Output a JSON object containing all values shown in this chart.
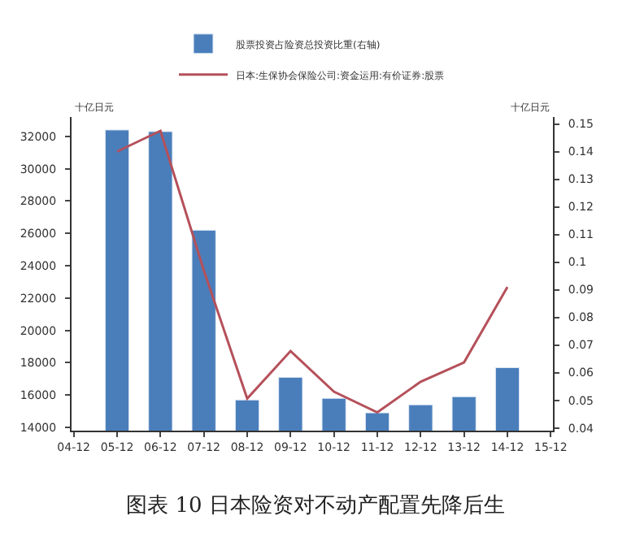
{
  "chart_data": {
    "type": "bar",
    "title": "图表 10 日本险资对不动产配置先降后生",
    "categories": [
      "04-12",
      "05-12",
      "06-12",
      "07-12",
      "08-12",
      "09-12",
      "10-12",
      "11-12",
      "12-12",
      "13-12",
      "14-12",
      "15-12"
    ],
    "series": [
      {
        "name": "股票投资占险资总投资比重(右轴)",
        "color": "#4a7ebb",
        "values": [
          null,
          32400,
          32300,
          26200,
          15700,
          17100,
          15800,
          14900,
          15400,
          15900,
          17700,
          null
        ]
      },
      {
        "name": "日本:生保协会保险公司:资金运用:有价证券:股票",
        "type": "line",
        "axis": "y2",
        "color": "#b5505a",
        "values": [
          null,
          0.14,
          0.1475,
          0.097,
          0.0506,
          0.0678,
          0.0531,
          0.0456,
          0.0567,
          0.0637,
          0.091,
          null
        ]
      }
    ],
    "ylim": [
      13800,
      33200
    ],
    "yticks": [
      14000,
      16000,
      18000,
      20000,
      22000,
      24000,
      26000,
      28000,
      30000,
      32000
    ],
    "y2lim": [
      0.039,
      0.1525
    ],
    "y2ticks": [
      0.04,
      0.05,
      0.06,
      0.07,
      0.08,
      0.09,
      0.1,
      0.11,
      0.12,
      0.13,
      0.14,
      0.15
    ],
    "annotations": [
      "十亿日元",
      "十亿日元"
    ],
    "legend": "top",
    "marker": "none",
    "line_style": "solid"
  }
}
